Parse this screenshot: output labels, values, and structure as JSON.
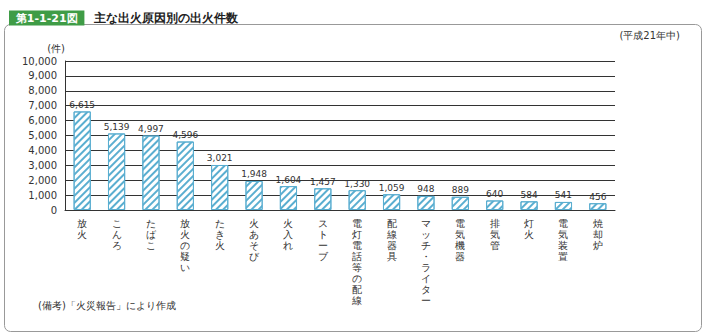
{
  "chart_data": {
    "type": "bar",
    "figure_number": "第1-1-21図",
    "title": "主な出火原因別の出火件数",
    "subtitle": "(平成21年中)",
    "y_label": "(件)",
    "note": "(備考)「火災報告」により作成",
    "categories": [
      "放火",
      "こんろ",
      "たばこ",
      "放火の疑い",
      "たき火",
      "火あそび",
      "火入れ",
      "ストーブ",
      "電灯電話等の配線",
      "配線器具",
      "マッチ・ライター",
      "電気機器",
      "排気管",
      "灯火",
      "電気装置",
      "焼却炉"
    ],
    "values": [
      6615,
      5139,
      4997,
      4596,
      3021,
      1948,
      1604,
      1457,
      1330,
      1059,
      948,
      889,
      640,
      584,
      541,
      456
    ],
    "value_labels": [
      "6,615",
      "5,139",
      "4,997",
      "4,596",
      "3,021",
      "1,948",
      "1,604",
      "1,457",
      "1,330",
      "1,059",
      "948",
      "889",
      "640",
      "584",
      "541",
      "456"
    ],
    "color": "#5aaed0",
    "ylim": [
      0,
      10000
    ],
    "yticks": [
      0,
      {
        "value": 1000,
        "label": "1,000"
      },
      {
        "value": 2000,
        "label": "2,000"
      },
      {
        "value": 3000,
        "label": "3,000"
      },
      {
        "value": 4000,
        "label": "4,000"
      },
      {
        "value": 5000,
        "label": "5,000"
      },
      {
        "value": 6000,
        "label": "6,000"
      },
      {
        "value": 7000,
        "label": "7,000"
      },
      {
        "value": 8000,
        "label": "8,000"
      },
      {
        "value": 9000,
        "label": "9,000"
      },
      {
        "value": 10000,
        "label": "10,000"
      }
    ],
    "grid": true,
    "data_labels": true
  }
}
